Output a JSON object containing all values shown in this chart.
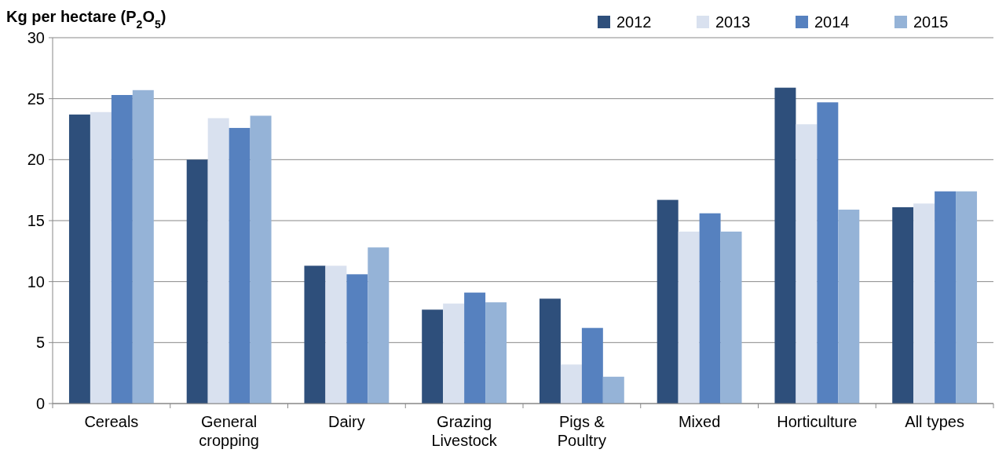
{
  "chart_data": {
    "type": "bar",
    "ylabel": "Kg per hectare (P$_{2}$O$_{5}$)",
    "categories": [
      "Cereals",
      "General cropping",
      "Dairy",
      "Grazing Livestock",
      "Pigs & Poultry",
      "Mixed",
      "Horticulture",
      "All types"
    ],
    "series": [
      {
        "name": "2012",
        "color": "#2e4f7b",
        "values": [
          23.7,
          20.0,
          11.3,
          7.7,
          8.6,
          16.7,
          25.9,
          16.1
        ]
      },
      {
        "name": "2013",
        "color": "#d9e1ef",
        "values": [
          23.9,
          23.4,
          11.3,
          8.2,
          3.2,
          14.1,
          22.9,
          16.4
        ]
      },
      {
        "name": "2014",
        "color": "#5681bf",
        "values": [
          25.3,
          22.6,
          10.6,
          9.1,
          6.2,
          15.6,
          24.7,
          17.4
        ]
      },
      {
        "name": "2015",
        "color": "#95b3d7",
        "values": [
          25.7,
          23.6,
          12.8,
          8.3,
          2.2,
          14.1,
          15.9,
          17.4
        ]
      }
    ],
    "ylim": [
      0,
      30
    ],
    "yticks": [
      0,
      5,
      10,
      15,
      20,
      25,
      30
    ],
    "grid": "y",
    "legend": "top right"
  }
}
